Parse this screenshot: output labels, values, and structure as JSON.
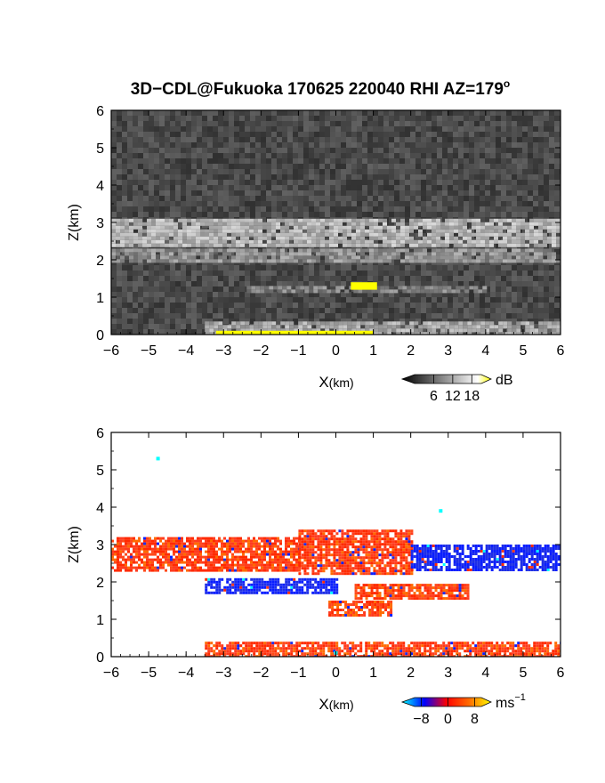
{
  "figure": {
    "title_main": "3D−CDL@Fukuoka 170625 220040 RHI AZ=179",
    "title_sup": "o"
  },
  "chart_data": [
    {
      "type": "heatmap",
      "id": "intensity",
      "xlabel_main": "X",
      "xlabel_unit": "(km)",
      "ylabel": "Z(km)",
      "xlim": [
        -6,
        6
      ],
      "ylim": [
        0,
        6
      ],
      "xticks": [
        "−6",
        "−5",
        "−4",
        "−3",
        "−2",
        "−1",
        "0",
        "1",
        "2",
        "3",
        "4",
        "5",
        "6"
      ],
      "yticks": [
        "0",
        "1",
        "2",
        "3",
        "4",
        "5",
        "6"
      ],
      "colorbar": {
        "unit": "dB",
        "ticks": [
          "6",
          "12",
          "18"
        ],
        "range": [
          0,
          21
        ],
        "colors": [
          "#000000",
          "#ffffff",
          "#ffff00"
        ]
      },
      "background_level": 6,
      "layers": [
        {
          "feature": "high cloud layer",
          "x": [
            -6,
            6
          ],
          "z_bottom": 2.35,
          "z_top": 3.1,
          "level": 15
        },
        {
          "feature": "mid layer",
          "x": [
            -6,
            6
          ],
          "z_bottom": 1.95,
          "z_top": 2.3,
          "level": 12
        },
        {
          "feature": "thin layer",
          "x": [
            -2.5,
            4
          ],
          "z_bottom": 1.15,
          "z_top": 1.3,
          "level": 11
        },
        {
          "feature": "boundary layer",
          "x": [
            -3.5,
            6
          ],
          "z_bottom": 0.0,
          "z_top": 0.35,
          "level": 14
        }
      ],
      "spots": [
        {
          "feature": "bright spot",
          "x": [
            0.4,
            1.1
          ],
          "z": [
            1.2,
            1.4
          ],
          "level": 20
        },
        {
          "feature": "surface return",
          "x": [
            -3.2,
            1.0
          ],
          "z": [
            0.0,
            0.1
          ],
          "level": 20
        }
      ]
    },
    {
      "type": "heatmap",
      "id": "doppler",
      "xlabel_main": "X",
      "xlabel_unit": "(km)",
      "ylabel": "Z(km)",
      "xlim": [
        -6,
        6
      ],
      "ylim": [
        0,
        6
      ],
      "xticks": [
        "−6",
        "−5",
        "−4",
        "−3",
        "−2",
        "−1",
        "0",
        "1",
        "2",
        "3",
        "4",
        "5",
        "6"
      ],
      "yticks": [
        "0",
        "1",
        "2",
        "3",
        "4",
        "5",
        "6"
      ],
      "colorbar": {
        "unit": "ms",
        "unit_exp": "−1",
        "ticks": [
          "−8",
          "0",
          "8"
        ],
        "range": [
          -10,
          10
        ],
        "colors": [
          "#00ffff",
          "#0000ff",
          "#ff0000",
          "#ffff00"
        ]
      },
      "regions": [
        {
          "feature": "upper layer (west)",
          "x": [
            -6,
            -1
          ],
          "z_bottom": 2.3,
          "z_top": 3.2,
          "velocity": 3
        },
        {
          "feature": "upper layer (centre)",
          "x": [
            -1,
            2
          ],
          "z_bottom": 2.2,
          "z_top": 3.4,
          "velocity": 3
        },
        {
          "feature": "upper layer (east)",
          "x": [
            2,
            6
          ],
          "z_bottom": 2.3,
          "z_top": 3.0,
          "velocity": -3
        },
        {
          "feature": "mid band",
          "x": [
            -3.5,
            0
          ],
          "z_bottom": 1.7,
          "z_top": 2.1,
          "velocity": -4
        },
        {
          "feature": "mid band (east)",
          "x": [
            0.5,
            3.5
          ],
          "z_bottom": 1.55,
          "z_top": 1.95,
          "velocity": 4
        },
        {
          "feature": "lower band",
          "x": [
            -0.2,
            1.5
          ],
          "z_bottom": 1.1,
          "z_top": 1.5,
          "velocity": 4
        },
        {
          "feature": "near-surface layer",
          "x": [
            -3.5,
            6
          ],
          "z_bottom": 0.0,
          "z_top": 0.4,
          "velocity": 3
        }
      ],
      "isolated_points": [
        {
          "x": -4.75,
          "z": 5.3,
          "velocity": -10
        },
        {
          "x": 2.8,
          "z": 3.9,
          "velocity": -10
        },
        {
          "x": 0.0,
          "z": 0.1,
          "velocity": -10
        }
      ]
    }
  ]
}
